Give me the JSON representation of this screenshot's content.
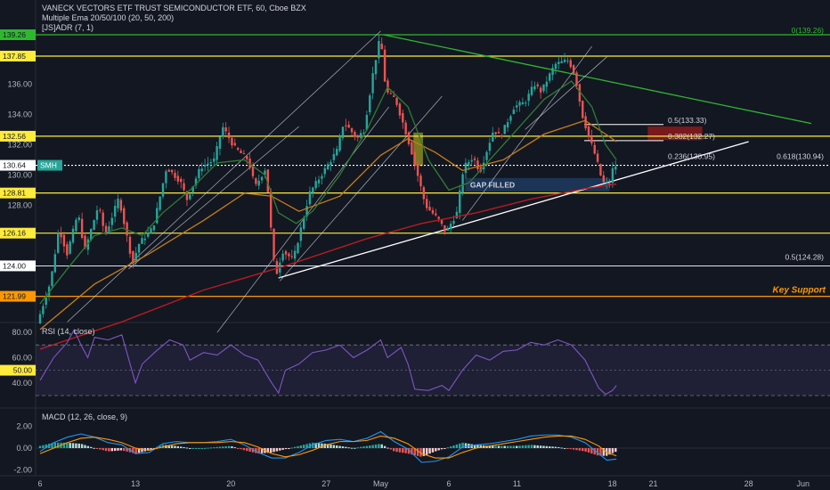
{
  "header": {
    "title": "VANECK VECTORS ETF TRUST SEMICONDUCTOR ETF, 60, Cboe BZX",
    "ema_label": "Multiple Ema 20/50/100 (20, 50, 200)",
    "adr_label": "[JS]ADR (7, 1)"
  },
  "colors": {
    "background": "#131722",
    "up": "#26a69a",
    "down": "#ef5350",
    "yellow": "#ffeb3b",
    "green_line": "#2eb82e",
    "orange": "#ff9800",
    "white": "#ffffff",
    "rsi": "#7e57c2",
    "macd": "#2196f3",
    "signal": "#ff9800"
  },
  "chart_data": [
    {
      "type": "candlestick",
      "pane": "price",
      "title": "VANECK VECTORS ETF TRUST SEMICONDUCTOR ETF, 60, Cboe BZX",
      "ylim": [
        119.5,
        140.5
      ],
      "y_ticks": [
        122,
        124,
        126,
        128,
        130,
        132,
        134,
        136,
        138
      ],
      "y_tick_labels": [
        "",
        "124.00",
        "",
        "128.00",
        "130.00",
        "132.00",
        "134.00",
        "136.00",
        ""
      ],
      "x_ticks": [
        {
          "label": "6",
          "day": 0
        },
        {
          "label": "13",
          "day": 7
        },
        {
          "label": "20",
          "day": 14
        },
        {
          "label": "27",
          "day": 21
        },
        {
          "label": "May",
          "day": 25
        },
        {
          "label": "6",
          "day": 30
        },
        {
          "label": "11",
          "day": 35
        },
        {
          "label": "18",
          "day": 42
        },
        {
          "label": "21",
          "day": 45
        },
        {
          "label": "28",
          "day": 52
        },
        {
          "label": "Jun",
          "day": 56
        }
      ],
      "price_path": [
        [
          0,
          120.2
        ],
        [
          1,
          123
        ],
        [
          1.6,
          126.5
        ],
        [
          2.2,
          124.8
        ],
        [
          3,
          127.5
        ],
        [
          3.5,
          125
        ],
        [
          4.5,
          128
        ],
        [
          5,
          126
        ],
        [
          6,
          128.5
        ],
        [
          7,
          124.2
        ],
        [
          7.5,
          125.5
        ],
        [
          8.5,
          126.5
        ],
        [
          9.5,
          130.5
        ],
        [
          10.5,
          129.6
        ],
        [
          11,
          128.4
        ],
        [
          12,
          130.5
        ],
        [
          13,
          131
        ],
        [
          13.6,
          133.2
        ],
        [
          14.5,
          131.8
        ],
        [
          15.5,
          131
        ],
        [
          16,
          129.2
        ],
        [
          16.8,
          130.5
        ],
        [
          17.2,
          126
        ],
        [
          17.5,
          123.2
        ],
        [
          18,
          125
        ],
        [
          18.8,
          124.4
        ],
        [
          20,
          128.8
        ],
        [
          21,
          130.2
        ],
        [
          22,
          131.6
        ],
        [
          22.5,
          133.5
        ],
        [
          23.5,
          132.4
        ],
        [
          24,
          133
        ],
        [
          24.7,
          137
        ],
        [
          25.2,
          139.2
        ],
        [
          25.6,
          135.5
        ],
        [
          26.3,
          135
        ],
        [
          27,
          133
        ],
        [
          27.5,
          131.5
        ],
        [
          28.5,
          128
        ],
        [
          29.5,
          127
        ],
        [
          30,
          126.2
        ],
        [
          30.8,
          127.5
        ],
        [
          31.3,
          130.5
        ],
        [
          32,
          131.2
        ],
        [
          32.5,
          130.2
        ],
        [
          33.5,
          133
        ],
        [
          34,
          132.5
        ],
        [
          35,
          134.5
        ],
        [
          35.8,
          134.8
        ],
        [
          36.5,
          136
        ],
        [
          37,
          135.5
        ],
        [
          38,
          137.3
        ],
        [
          39,
          137.6
        ],
        [
          39.5,
          136.5
        ],
        [
          40,
          134
        ],
        [
          40.5,
          132.5
        ],
        [
          41,
          131.2
        ],
        [
          41.5,
          129.5
        ],
        [
          42,
          129.4
        ],
        [
          42.3,
          130.6
        ]
      ],
      "ema_20_path": [
        [
          0,
          121.5
        ],
        [
          2,
          123.8
        ],
        [
          4,
          126
        ],
        [
          6,
          126.5
        ],
        [
          7.5,
          126
        ],
        [
          9,
          127.5
        ],
        [
          11,
          129
        ],
        [
          13,
          130.8
        ],
        [
          15,
          131
        ],
        [
          16.5,
          130
        ],
        [
          17.5,
          127.5
        ],
        [
          18.8,
          126.8
        ],
        [
          20,
          127.6
        ],
        [
          22,
          130
        ],
        [
          24,
          133
        ],
        [
          25.5,
          135.8
        ],
        [
          27,
          134.5
        ],
        [
          28.5,
          131
        ],
        [
          30,
          129
        ],
        [
          31.5,
          129.5
        ],
        [
          33,
          131
        ],
        [
          35,
          133
        ],
        [
          37,
          135
        ],
        [
          39,
          136.2
        ],
        [
          40.5,
          134.5
        ],
        [
          41.5,
          132
        ],
        [
          42.3,
          131
        ]
      ],
      "ema_50_path": [
        [
          0,
          119.8
        ],
        [
          4,
          122.8
        ],
        [
          8,
          124.8
        ],
        [
          12,
          127
        ],
        [
          15,
          128.8
        ],
        [
          17,
          128.6
        ],
        [
          19,
          127.6
        ],
        [
          22,
          128.6
        ],
        [
          25,
          131.3
        ],
        [
          27,
          132.4
        ],
        [
          29,
          131.5
        ],
        [
          31,
          130.3
        ],
        [
          34,
          131
        ],
        [
          37,
          132.7
        ],
        [
          40,
          133.6
        ],
        [
          41.5,
          132.7
        ],
        [
          42.3,
          132.2
        ]
      ],
      "ema_200_path": [
        [
          0,
          118.5
        ],
        [
          6,
          120.3
        ],
        [
          12,
          122.4
        ],
        [
          18,
          124
        ],
        [
          24,
          125.8
        ],
        [
          28,
          126.8
        ],
        [
          32,
          127.5
        ],
        [
          36,
          128.4
        ],
        [
          40,
          129.1
        ],
        [
          42.3,
          129.4
        ]
      ],
      "horizontal_levels": [
        {
          "label": "139.26",
          "price": 139.26,
          "kind": "green"
        },
        {
          "label": "137.85",
          "price": 137.85,
          "kind": "yellow"
        },
        {
          "label": "132.56",
          "price": 132.56,
          "kind": "yellow"
        },
        {
          "label": "130.64",
          "price": 130.64,
          "kind": "white",
          "tag": "SMH"
        },
        {
          "label": "128.81",
          "price": 128.81,
          "kind": "yellow"
        },
        {
          "label": "126.16",
          "price": 126.16,
          "kind": "yellow"
        },
        {
          "label": "124.00",
          "price": 124.0,
          "kind": "white-thin"
        },
        {
          "label": "121.99",
          "price": 121.99,
          "kind": "orange"
        }
      ],
      "trendlines": [
        {
          "from": [
            25.2,
            139.26
          ],
          "to": [
            56.6,
            133.4
          ],
          "kind": "green"
        },
        {
          "from": [
            17.5,
            123.2
          ],
          "to": [
            52,
            132.2
          ],
          "kind": "white"
        }
      ],
      "fib_labels": [
        {
          "text": "0(139.26)",
          "price": 139.26,
          "kind": "green"
        },
        {
          "text": "0.5(133.33)",
          "price": 133.33
        },
        {
          "text": "0.382(132.27)",
          "price": 132.27
        },
        {
          "text": "0.236(130.95)",
          "price": 130.95
        },
        {
          "text": "0.618(130.94)",
          "price": 130.94
        },
        {
          "text": "0.5(124.28)",
          "price": 124.28
        }
      ],
      "annotations": [
        {
          "text": "GAP FILLED",
          "price": 129.0
        },
        {
          "text": "Key Support",
          "price": 122.4
        }
      ],
      "zones": [
        {
          "name": "gap-filled-zone",
          "day_from": 31.2,
          "day_to": 41.8,
          "price_from": 128.9,
          "price_to": 129.8,
          "color": "#1e3a5f"
        },
        {
          "name": "resistance-zone",
          "day_from": 44.6,
          "day_to": 48.6,
          "price_from": 132.3,
          "price_to": 133.2,
          "color": "#8b1a1a"
        },
        {
          "name": "gap-marker",
          "day_from": 27.4,
          "day_to": 28.1,
          "price_from": 130.6,
          "price_to": 132.8,
          "color": "#8a8a1e"
        }
      ],
      "current_price": 130.64,
      "current_price_tag": "SMH"
    },
    {
      "type": "line",
      "pane": "rsi",
      "title": "RSI (14, close)",
      "ylim": [
        22,
        90
      ],
      "y_tick_labels": [
        "80.00",
        "60.00",
        "50.00",
        "40.00"
      ],
      "y_ticks": [
        80,
        60,
        50,
        40
      ],
      "bands": [
        70,
        50,
        30
      ],
      "series": [
        {
          "values": [
            [
              0,
              42
            ],
            [
              1,
              60
            ],
            [
              2,
              72
            ],
            [
              2.5,
              82
            ],
            [
              3,
              70
            ],
            [
              3.5,
              60
            ],
            [
              4,
              76
            ],
            [
              5,
              74
            ],
            [
              6,
              78
            ],
            [
              7,
              40
            ],
            [
              7.5,
              55
            ],
            [
              8.5,
              65
            ],
            [
              9.5,
              74
            ],
            [
              10.5,
              70
            ],
            [
              11,
              58
            ],
            [
              12,
              64
            ],
            [
              13,
              62
            ],
            [
              14,
              70
            ],
            [
              15,
              62
            ],
            [
              16,
              58
            ],
            [
              17,
              40
            ],
            [
              17.5,
              32
            ],
            [
              18,
              50
            ],
            [
              19,
              55
            ],
            [
              20,
              64
            ],
            [
              21,
              66
            ],
            [
              22,
              70
            ],
            [
              23,
              60
            ],
            [
              24,
              66
            ],
            [
              25,
              74
            ],
            [
              25.5,
              60
            ],
            [
              26.5,
              68
            ],
            [
              27,
              55
            ],
            [
              27.5,
              35
            ],
            [
              28.5,
              34
            ],
            [
              29.5,
              38
            ],
            [
              30,
              34
            ],
            [
              31,
              50
            ],
            [
              32,
              62
            ],
            [
              33,
              58
            ],
            [
              34,
              65
            ],
            [
              35,
              66
            ],
            [
              36,
              72
            ],
            [
              37,
              70
            ],
            [
              38,
              74
            ],
            [
              39,
              70
            ],
            [
              40,
              58
            ],
            [
              41,
              36
            ],
            [
              41.5,
              31
            ],
            [
              42,
              34
            ],
            [
              42.3,
              38
            ]
          ]
        }
      ]
    },
    {
      "type": "bar",
      "pane": "macd",
      "title": "MACD (12, 26, close, 9)",
      "ylim": [
        -2.6,
        2.9
      ],
      "y_tick_labels": [
        "2.00",
        "0.00",
        "-2.00"
      ],
      "y_ticks": [
        2,
        0,
        -2
      ],
      "macd_path": [
        [
          0,
          -0.3
        ],
        [
          1,
          0.5
        ],
        [
          2,
          1.0
        ],
        [
          3,
          1.3
        ],
        [
          4,
          1.0
        ],
        [
          5,
          0.5
        ],
        [
          6,
          0.3
        ],
        [
          7,
          -0.5
        ],
        [
          8,
          -0.4
        ],
        [
          9,
          0.4
        ],
        [
          10,
          0.6
        ],
        [
          11,
          0.5
        ],
        [
          12,
          0.5
        ],
        [
          13,
          0.6
        ],
        [
          14,
          0.8
        ],
        [
          15,
          0.3
        ],
        [
          16,
          -0.4
        ],
        [
          17,
          -0.9
        ],
        [
          18,
          -0.9
        ],
        [
          19,
          -0.4
        ],
        [
          20,
          0.3
        ],
        [
          21,
          0.7
        ],
        [
          22,
          0.8
        ],
        [
          23,
          0.6
        ],
        [
          24,
          0.9
        ],
        [
          25,
          1.5
        ],
        [
          26,
          0.6
        ],
        [
          27,
          -0.1
        ],
        [
          28,
          -1.3
        ],
        [
          29,
          -1.2
        ],
        [
          30,
          -0.8
        ],
        [
          31,
          0.1
        ],
        [
          32,
          0.3
        ],
        [
          33,
          0.4
        ],
        [
          34,
          0.6
        ],
        [
          35,
          0.8
        ],
        [
          36,
          1.1
        ],
        [
          37,
          1.2
        ],
        [
          38,
          1.2
        ],
        [
          39,
          1.0
        ],
        [
          40,
          0.5
        ],
        [
          41,
          -0.5
        ],
        [
          41.6,
          -1.1
        ],
        [
          42.3,
          -1.0
        ]
      ],
      "signal_path": [
        [
          0,
          -0.5
        ],
        [
          1,
          0.0
        ],
        [
          2,
          0.5
        ],
        [
          3,
          0.9
        ],
        [
          4,
          1.0
        ],
        [
          5,
          0.8
        ],
        [
          6,
          0.5
        ],
        [
          7,
          0.0
        ],
        [
          8,
          -0.2
        ],
        [
          9,
          0.1
        ],
        [
          10,
          0.4
        ],
        [
          11,
          0.5
        ],
        [
          12,
          0.5
        ],
        [
          13,
          0.5
        ],
        [
          14,
          0.6
        ],
        [
          15,
          0.5
        ],
        [
          16,
          0.1
        ],
        [
          17,
          -0.5
        ],
        [
          18,
          -0.8
        ],
        [
          19,
          -0.6
        ],
        [
          20,
          -0.2
        ],
        [
          21,
          0.3
        ],
        [
          22,
          0.6
        ],
        [
          23,
          0.6
        ],
        [
          24,
          0.7
        ],
        [
          25,
          1.1
        ],
        [
          26,
          0.9
        ],
        [
          27,
          0.4
        ],
        [
          28,
          -0.5
        ],
        [
          29,
          -0.9
        ],
        [
          30,
          -0.9
        ],
        [
          31,
          -0.4
        ],
        [
          32,
          0.0
        ],
        [
          33,
          0.2
        ],
        [
          34,
          0.4
        ],
        [
          35,
          0.6
        ],
        [
          36,
          0.8
        ],
        [
          37,
          1.0
        ],
        [
          38,
          1.1
        ],
        [
          39,
          1.1
        ],
        [
          40,
          0.8
        ],
        [
          41,
          0.2
        ],
        [
          41.6,
          -0.4
        ],
        [
          42.3,
          -0.7
        ]
      ]
    }
  ]
}
